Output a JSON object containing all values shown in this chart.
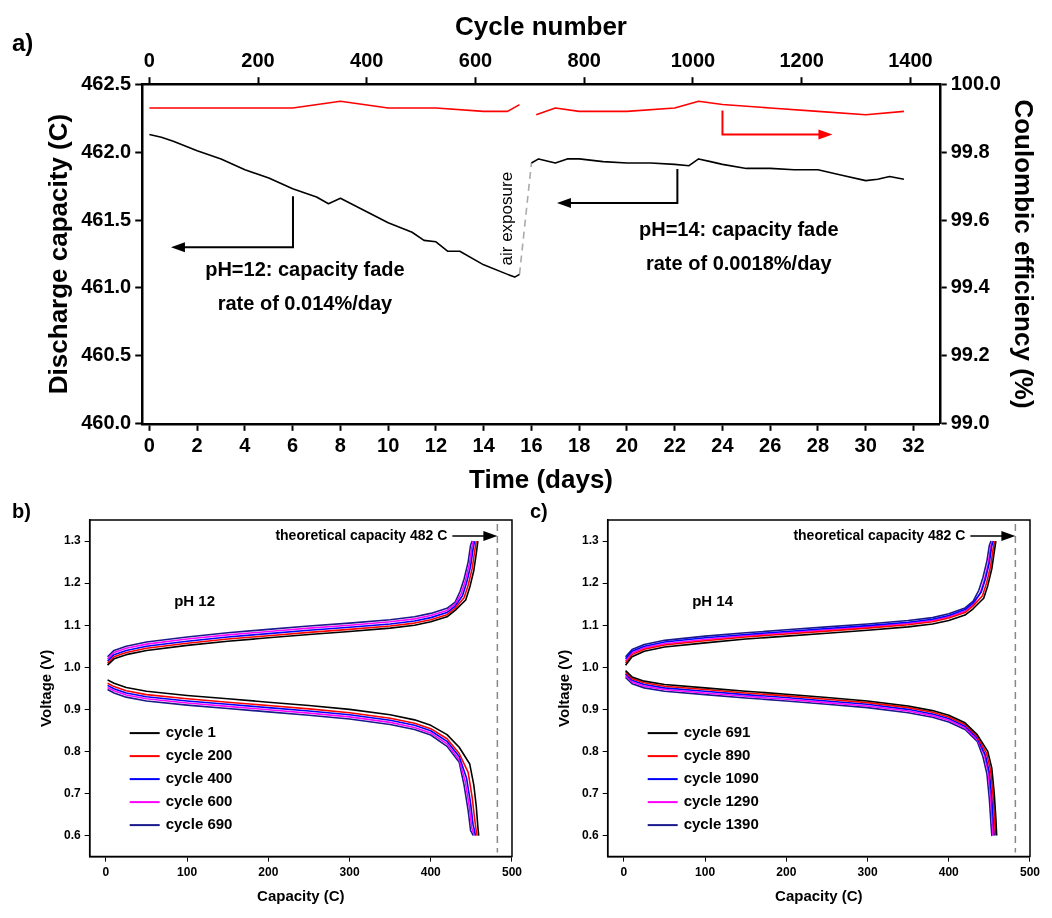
{
  "chart_data": [
    {
      "type": "line",
      "title": "a)",
      "xlabel": "Time (days)",
      "x2label": "Cycle number",
      "ylabel": "Discharge capacity (C)",
      "y2label": "Coulombic efficiency (%)",
      "xlim": [
        -0.3,
        33.1
      ],
      "xticks": [
        0,
        2,
        4,
        6,
        8,
        10,
        12,
        14,
        16,
        18,
        20,
        22,
        24,
        26,
        28,
        30,
        32
      ],
      "x2lim": [
        -13,
        1454
      ],
      "x2ticks": [
        0,
        200,
        400,
        600,
        800,
        1000,
        1200,
        1400
      ],
      "ylim": [
        460,
        462.5
      ],
      "yticks": [
        {
          "value": 460,
          "label": "460.0"
        },
        460.5,
        {
          "value": 461,
          "label": "461.0"
        },
        461.5,
        {
          "value": 462,
          "label": "462.0"
        },
        462.5
      ],
      "y2lim": [
        99,
        100
      ],
      "y2ticks": [
        {
          "value": 99,
          "label": "99.0"
        },
        99.2,
        99.4,
        99.6,
        99.8,
        {
          "value": 100,
          "label": "100.0"
        }
      ],
      "grid": false,
      "legend": false,
      "marker": "none",
      "series": [
        {
          "color": "#000000",
          "axis": "y",
          "x": [
            0,
            0.5,
            1,
            2,
            3,
            4,
            5,
            6,
            7,
            7.5,
            8,
            9,
            10,
            11,
            11.5,
            12,
            12.5,
            13,
            14,
            15,
            15.3,
            15.5,
            15.75,
            16,
            16.3,
            17,
            17.5,
            18,
            19,
            20,
            21,
            22,
            22.6,
            23,
            23.5,
            24,
            25,
            26,
            27,
            28,
            29,
            30,
            30.5,
            31,
            31.6
          ],
          "values": [
            462.13,
            462.11,
            462.08,
            462.01,
            461.95,
            461.87,
            461.81,
            461.73,
            461.67,
            461.62,
            461.66,
            461.57,
            461.48,
            461.41,
            461.35,
            461.34,
            461.27,
            461.27,
            461.17,
            461.1,
            461.08,
            461.1,
            null,
            461.92,
            461.95,
            461.92,
            461.95,
            461.95,
            461.93,
            461.92,
            461.92,
            461.91,
            461.9,
            461.95,
            461.93,
            461.91,
            461.88,
            461.88,
            461.87,
            461.87,
            461.83,
            461.79,
            461.8,
            461.82,
            461.8
          ]
        },
        {
          "color": "#ff0000",
          "axis": "y2",
          "x": [
            0,
            2,
            4,
            6,
            8,
            10,
            12,
            14,
            15,
            15.5,
            15.75,
            16.2,
            17,
            18,
            20,
            22,
            23,
            24,
            26,
            28,
            30,
            31.6
          ],
          "values": [
            99.93,
            99.93,
            99.93,
            99.93,
            99.95,
            99.93,
            99.93,
            99.92,
            99.92,
            99.94,
            null,
            99.91,
            99.93,
            99.92,
            99.92,
            99.93,
            99.95,
            99.94,
            99.93,
            99.92,
            99.91,
            99.92
          ]
        },
        {
          "name": "air exposure",
          "color": "#aaaaaa",
          "axis": "y",
          "line_style": "dashed",
          "x": [
            15.5,
            16
          ],
          "values": [
            461.1,
            461.92
          ]
        }
      ],
      "annotations": [
        "pH=12: capacity fade\nrate of 0.014%/day",
        "pH=14: capacity fade\nrate of 0.0018%/day"
      ]
    },
    {
      "type": "line",
      "title": "b)",
      "xlabel": "Capacity (C)",
      "ylabel": "Voltage (V)",
      "xlim": [
        -20,
        500
      ],
      "xticks": [
        0,
        100,
        200,
        300,
        400,
        500
      ],
      "ylim": [
        0.55,
        1.35
      ],
      "yticks": [
        0.6,
        0.7,
        0.8,
        0.9,
        {
          "value": 1,
          "label": "1.0"
        },
        1.1,
        1.2,
        1.3
      ],
      "grid": false,
      "legend": "bottom left",
      "marker": "none",
      "annotations": [
        "pH 12"
      ],
      "ref_lines": [
        {
          "axis": "x",
          "value": 482,
          "label": "theoretical capacity 482 C",
          "color": "#888888",
          "line_style": "dashed"
        }
      ],
      "series": [
        {
          "name": "cycle 1",
          "color": "#000000",
          "x": [
            2,
            10,
            25,
            50,
            100,
            150,
            200,
            250,
            300,
            350,
            380,
            400,
            420,
            430,
            443,
            448,
            453,
            456,
            458
          ],
          "values": [
            1.005,
            1.02,
            1.03,
            1.04,
            1.052,
            1.062,
            1.07,
            1.078,
            1.085,
            1.093,
            1.1,
            1.108,
            1.12,
            1.135,
            1.16,
            1.19,
            1.23,
            1.27,
            1.3
          ]
        },
        {
          "color": "#000000",
          "x": [
            2,
            10,
            25,
            50,
            100,
            150,
            200,
            250,
            300,
            350,
            380,
            400,
            420,
            435,
            448,
            453,
            456,
            458,
            459
          ],
          "values": [
            0.97,
            0.962,
            0.952,
            0.943,
            0.933,
            0.925,
            0.917,
            0.909,
            0.9,
            0.887,
            0.875,
            0.862,
            0.84,
            0.81,
            0.77,
            0.72,
            0.67,
            0.62,
            0.6
          ]
        },
        {
          "name": "cycle 200",
          "color": "#ff0000",
          "x": [
            2,
            10,
            25,
            50,
            100,
            150,
            200,
            250,
            300,
            350,
            380,
            400,
            420,
            430,
            441,
            446,
            451,
            454,
            456
          ],
          "values": [
            1.01,
            1.025,
            1.035,
            1.045,
            1.057,
            1.067,
            1.075,
            1.083,
            1.09,
            1.098,
            1.105,
            1.113,
            1.125,
            1.14,
            1.165,
            1.195,
            1.235,
            1.275,
            1.3
          ]
        },
        {
          "color": "#ff0000",
          "x": [
            2,
            10,
            25,
            50,
            100,
            150,
            200,
            250,
            300,
            350,
            380,
            400,
            420,
            435,
            446,
            451,
            454,
            456,
            457
          ],
          "values": [
            0.962,
            0.954,
            0.944,
            0.935,
            0.925,
            0.917,
            0.909,
            0.901,
            0.892,
            0.879,
            0.867,
            0.854,
            0.83,
            0.795,
            0.75,
            0.69,
            0.64,
            0.61,
            0.6
          ]
        },
        {
          "name": "cycle 400",
          "color": "#0000ff",
          "x": [
            2,
            10,
            25,
            50,
            100,
            150,
            200,
            250,
            300,
            350,
            380,
            400,
            420,
            430,
            439,
            444,
            449,
            452,
            454
          ],
          "values": [
            1.015,
            1.03,
            1.04,
            1.05,
            1.062,
            1.072,
            1.08,
            1.088,
            1.095,
            1.103,
            1.11,
            1.118,
            1.13,
            1.145,
            1.17,
            1.2,
            1.24,
            1.28,
            1.3
          ]
        },
        {
          "color": "#0000ff",
          "x": [
            2,
            10,
            25,
            50,
            100,
            150,
            200,
            250,
            300,
            350,
            380,
            400,
            420,
            435,
            444,
            449,
            452,
            454,
            455
          ],
          "values": [
            0.957,
            0.949,
            0.939,
            0.93,
            0.92,
            0.912,
            0.904,
            0.896,
            0.887,
            0.874,
            0.862,
            0.849,
            0.824,
            0.788,
            0.737,
            0.677,
            0.627,
            0.61,
            0.6
          ]
        },
        {
          "name": "cycle 600",
          "color": "#ff00ff",
          "x": [
            2,
            10,
            25,
            50,
            100,
            150,
            200,
            250,
            300,
            350,
            380,
            400,
            420,
            430,
            437.5,
            442.5,
            447.5,
            450.5,
            452.5
          ],
          "values": [
            1.02,
            1.035,
            1.045,
            1.055,
            1.067,
            1.077,
            1.085,
            1.093,
            1.1,
            1.108,
            1.115,
            1.123,
            1.135,
            1.15,
            1.175,
            1.205,
            1.245,
            1.285,
            1.3
          ]
        },
        {
          "color": "#ff00ff",
          "x": [
            2,
            10,
            25,
            50,
            100,
            150,
            200,
            250,
            300,
            350,
            380,
            400,
            420,
            435,
            442.5,
            447.5,
            450.5,
            452.5,
            453.5
          ],
          "values": [
            0.952,
            0.944,
            0.934,
            0.925,
            0.915,
            0.907,
            0.899,
            0.891,
            0.882,
            0.869,
            0.857,
            0.844,
            0.818,
            0.78,
            0.728,
            0.668,
            0.618,
            0.607,
            0.6
          ]
        },
        {
          "name": "cycle 690",
          "color": "#1a1a8c",
          "x": [
            2,
            10,
            25,
            50,
            100,
            150,
            200,
            250,
            300,
            350,
            380,
            400,
            420,
            430,
            436,
            441,
            446,
            449,
            451
          ],
          "values": [
            1.025,
            1.04,
            1.05,
            1.06,
            1.072,
            1.082,
            1.09,
            1.098,
            1.105,
            1.113,
            1.12,
            1.128,
            1.14,
            1.155,
            1.18,
            1.21,
            1.25,
            1.29,
            1.3
          ]
        },
        {
          "color": "#1a1a8c",
          "x": [
            2,
            10,
            25,
            50,
            100,
            150,
            200,
            250,
            300,
            350,
            380,
            400,
            420,
            435,
            441,
            446,
            449,
            451,
            452
          ],
          "values": [
            0.947,
            0.939,
            0.929,
            0.92,
            0.91,
            0.902,
            0.894,
            0.886,
            0.877,
            0.864,
            0.852,
            0.839,
            0.812,
            0.774,
            0.72,
            0.66,
            0.612,
            0.605,
            0.6
          ]
        }
      ]
    },
    {
      "type": "line",
      "title": "c)",
      "xlabel": "Capacity (C)",
      "ylabel": "Voltage (V)",
      "xlim": [
        -20,
        500
      ],
      "xticks": [
        0,
        100,
        200,
        300,
        400,
        500
      ],
      "ylim": [
        0.55,
        1.35
      ],
      "yticks": [
        0.6,
        0.7,
        0.8,
        0.9,
        {
          "value": 1,
          "label": "1.0"
        },
        1.1,
        1.2,
        1.3
      ],
      "grid": false,
      "legend": "bottom left",
      "marker": "none",
      "annotations": [
        "pH 14"
      ],
      "ref_lines": [
        {
          "axis": "x",
          "value": 482,
          "label": "theoretical capacity 482 C",
          "color": "#888888",
          "line_style": "dashed"
        }
      ],
      "series": [
        {
          "name": "cycle 691",
          "color": "#000000",
          "x": [
            2,
            10,
            25,
            50,
            100,
            150,
            200,
            250,
            300,
            350,
            380,
            400,
            420,
            430,
            443,
            448,
            453,
            456,
            458
          ],
          "values": [
            1.005,
            1.025,
            1.038,
            1.048,
            1.058,
            1.067,
            1.074,
            1.081,
            1.088,
            1.096,
            1.103,
            1.111,
            1.124,
            1.139,
            1.164,
            1.194,
            1.234,
            1.274,
            1.3
          ]
        },
        {
          "color": "#000000",
          "x": [
            2,
            10,
            25,
            50,
            100,
            150,
            200,
            250,
            300,
            350,
            380,
            400,
            420,
            435,
            448,
            453,
            456,
            458,
            459
          ],
          "values": [
            0.992,
            0.977,
            0.967,
            0.959,
            0.951,
            0.943,
            0.936,
            0.928,
            0.92,
            0.908,
            0.897,
            0.886,
            0.868,
            0.84,
            0.8,
            0.76,
            0.7,
            0.64,
            0.6
          ]
        },
        {
          "name": "cycle 890",
          "color": "#ff0000",
          "x": [
            2,
            10,
            25,
            50,
            100,
            150,
            200,
            250,
            300,
            350,
            380,
            400,
            420,
            430,
            441.5,
            446.5,
            451.5,
            454.5,
            456.5
          ],
          "values": [
            1.01,
            1.03,
            1.043,
            1.053,
            1.063,
            1.072,
            1.079,
            1.086,
            1.093,
            1.101,
            1.108,
            1.117,
            1.13,
            1.146,
            1.17,
            1.2,
            1.24,
            1.28,
            1.3
          ]
        },
        {
          "color": "#ff0000",
          "x": [
            2,
            10,
            25,
            50,
            100,
            150,
            200,
            250,
            300,
            350,
            380,
            400,
            420,
            435,
            446.5,
            451.5,
            454.5,
            456.5,
            457.5
          ],
          "values": [
            0.988,
            0.973,
            0.963,
            0.955,
            0.947,
            0.939,
            0.932,
            0.924,
            0.916,
            0.904,
            0.893,
            0.882,
            0.864,
            0.836,
            0.796,
            0.755,
            0.695,
            0.635,
            0.6
          ]
        },
        {
          "name": "cycle 1090",
          "color": "#0000ff",
          "x": [
            2,
            10,
            25,
            50,
            100,
            150,
            200,
            250,
            300,
            350,
            380,
            400,
            420,
            430,
            440,
            445,
            450,
            453,
            455
          ],
          "values": [
            1.02,
            1.038,
            1.05,
            1.06,
            1.07,
            1.078,
            1.085,
            1.092,
            1.099,
            1.107,
            1.114,
            1.123,
            1.137,
            1.153,
            1.179,
            1.209,
            1.249,
            1.289,
            1.3
          ]
        },
        {
          "color": "#0000ff",
          "x": [
            2,
            10,
            25,
            50,
            100,
            150,
            200,
            250,
            300,
            350,
            380,
            400,
            420,
            435,
            445,
            450,
            453,
            455,
            456
          ],
          "values": [
            0.984,
            0.969,
            0.959,
            0.951,
            0.943,
            0.935,
            0.928,
            0.92,
            0.912,
            0.9,
            0.889,
            0.878,
            0.86,
            0.832,
            0.792,
            0.75,
            0.69,
            0.63,
            0.6
          ]
        },
        {
          "name": "cycle 1290",
          "color": "#ff00ff",
          "x": [
            2,
            10,
            25,
            50,
            100,
            150,
            200,
            250,
            300,
            350,
            380,
            400,
            420,
            430,
            438.5,
            443.5,
            448.5,
            451.5,
            453.5
          ],
          "values": [
            1.015,
            1.034,
            1.046,
            1.056,
            1.066,
            1.075,
            1.082,
            1.089,
            1.096,
            1.104,
            1.111,
            1.12,
            1.133,
            1.149,
            1.175,
            1.205,
            1.245,
            1.285,
            1.3
          ]
        },
        {
          "color": "#ff00ff",
          "x": [
            2,
            10,
            25,
            50,
            100,
            150,
            200,
            250,
            300,
            350,
            380,
            400,
            420,
            435,
            443.5,
            448.5,
            451.5,
            453.5,
            454.5
          ],
          "values": [
            0.98,
            0.965,
            0.955,
            0.947,
            0.939,
            0.931,
            0.924,
            0.916,
            0.908,
            0.896,
            0.885,
            0.874,
            0.856,
            0.828,
            0.794,
            0.752,
            0.692,
            0.632,
            0.6
          ]
        },
        {
          "name": "cycle 1390",
          "color": "#1a1a8c",
          "x": [
            2,
            10,
            25,
            50,
            100,
            150,
            200,
            250,
            300,
            350,
            380,
            400,
            420,
            430,
            437,
            442,
            447,
            450,
            452
          ],
          "values": [
            1.025,
            1.042,
            1.054,
            1.064,
            1.074,
            1.082,
            1.089,
            1.096,
            1.103,
            1.111,
            1.118,
            1.127,
            1.141,
            1.157,
            1.183,
            1.213,
            1.253,
            1.29,
            1.3
          ]
        },
        {
          "color": "#1a1a8c",
          "x": [
            2,
            10,
            25,
            50,
            100,
            150,
            200,
            250,
            300,
            350,
            380,
            400,
            420,
            435,
            442,
            447,
            450,
            452,
            453
          ],
          "values": [
            0.976,
            0.961,
            0.951,
            0.943,
            0.935,
            0.927,
            0.92,
            0.912,
            0.904,
            0.892,
            0.881,
            0.87,
            0.852,
            0.824,
            0.788,
            0.746,
            0.686,
            0.626,
            0.6
          ]
        }
      ]
    }
  ]
}
